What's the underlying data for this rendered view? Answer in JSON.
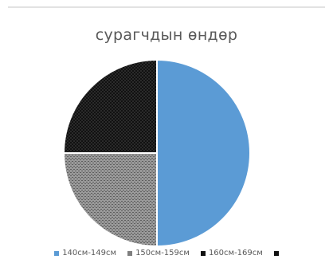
{
  "colors": {
    "series_blue": "#5b9bd5",
    "series_gray": "#7f7f7f",
    "series_black": "#111111",
    "series_fourth": "#111111",
    "outline": "#ffffff",
    "text": "#595959"
  },
  "chart_data": {
    "type": "pie",
    "title": "сурагчдын өндөр",
    "categories": [
      "140см-149см",
      "150см-159см",
      "160см-169см",
      ""
    ],
    "values": [
      50,
      25,
      25,
      0
    ],
    "legend_position": "bottom",
    "grid": false
  }
}
